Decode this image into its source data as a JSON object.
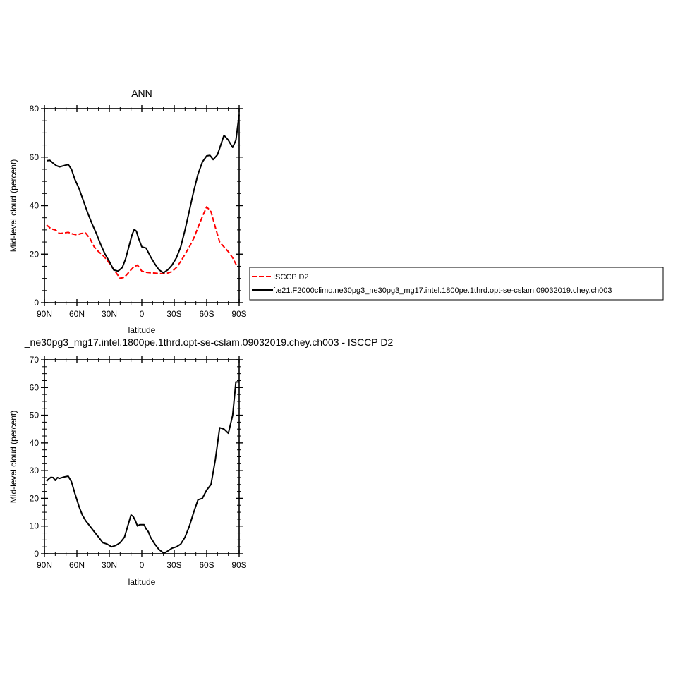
{
  "chart_data": [
    {
      "type": "line",
      "title": "ANN",
      "xlabel": "latitude",
      "ylabel": "Mid-level cloud (percent)",
      "xlim": [
        -90,
        90
      ],
      "ylim": [
        0,
        80
      ],
      "x_direction": "90N on left, 90S on right",
      "xticks": [
        {
          "value": -90,
          "label": "90N"
        },
        {
          "value": -60,
          "label": "60N"
        },
        {
          "value": -30,
          "label": "30N"
        },
        {
          "value": 0,
          "label": "0"
        },
        {
          "value": 30,
          "label": "30S"
        },
        {
          "value": 60,
          "label": "60S"
        },
        {
          "value": 90,
          "label": "90S"
        }
      ],
      "yticks": [
        0,
        20,
        40,
        60,
        80
      ],
      "legend": {
        "placement": "right, outside plot"
      },
      "series": [
        {
          "name": "ISCCP D2",
          "color": "#ff0000",
          "style": "dashed",
          "x": [
            -88,
            -84,
            -80,
            -76,
            -72,
            -68,
            -64,
            -60,
            -56,
            -52,
            -48,
            -44,
            -40,
            -36,
            -32,
            -28,
            -24,
            -20,
            -16,
            -12,
            -8,
            -4,
            0,
            4,
            8,
            12,
            16,
            20,
            24,
            28,
            32,
            36,
            40,
            44,
            48,
            52,
            56,
            60,
            64,
            68,
            72,
            76,
            80,
            84,
            88
          ],
          "values": [
            32,
            30.5,
            30,
            28.5,
            28.7,
            29,
            28.3,
            28,
            28.5,
            28.7,
            26.5,
            23,
            21,
            19.5,
            17.5,
            15,
            12.5,
            10,
            10.5,
            12.5,
            14.5,
            15.5,
            13,
            12.5,
            12.3,
            12.2,
            12,
            12,
            12.2,
            12.8,
            14.5,
            17,
            20,
            23,
            26.5,
            31,
            35.5,
            39.5,
            37.5,
            31,
            25,
            23,
            21,
            18.5,
            15
          ]
        },
        {
          "name": "f.e21.F2000climo.ne30pg3_ne30pg3_mg17.intel.1800pe.1thrd.opt-se-cslam.09032019.chey.ch003",
          "color": "#000000",
          "style": "solid",
          "x": [
            -88,
            -85,
            -82,
            -79,
            -76,
            -72,
            -68,
            -65,
            -62,
            -58,
            -54,
            -50,
            -46,
            -42,
            -38,
            -34,
            -30,
            -26,
            -22,
            -18,
            -15,
            -12,
            -9,
            -7,
            -5,
            -3,
            0,
            4,
            8,
            12,
            16,
            20,
            24,
            28,
            32,
            36,
            40,
            44,
            48,
            52,
            56,
            60,
            63,
            66,
            70,
            73,
            76,
            80,
            84,
            87,
            90
          ],
          "values": [
            58.5,
            58.7,
            57.5,
            56.5,
            56,
            56.5,
            57,
            55,
            51,
            47,
            42,
            37,
            32.5,
            28.5,
            24,
            20,
            17,
            13.5,
            13,
            14.5,
            18,
            23,
            28,
            30.2,
            29.5,
            26.5,
            23,
            22.5,
            19,
            16,
            13.5,
            12.3,
            13.5,
            15.5,
            18.5,
            23,
            30,
            38,
            46,
            53,
            58,
            60.5,
            60.7,
            59,
            61,
            65,
            69,
            67,
            64,
            67,
            77.5
          ]
        }
      ]
    },
    {
      "type": "line",
      "title": "_ne30pg3_mg17.intel.1800pe.1thrd.opt-se-cslam.09032019.chey.ch003 - ISCCP D2",
      "xlabel": "latitude",
      "ylabel": "Mid-level cloud (percent)",
      "xlim": [
        -90,
        90
      ],
      "ylim": [
        0,
        70
      ],
      "x_direction": "90N on left, 90S on right",
      "xticks": [
        {
          "value": -90,
          "label": "90N"
        },
        {
          "value": -60,
          "label": "60N"
        },
        {
          "value": -30,
          "label": "30N"
        },
        {
          "value": 0,
          "label": "0"
        },
        {
          "value": 30,
          "label": "30S"
        },
        {
          "value": 60,
          "label": "60S"
        },
        {
          "value": 90,
          "label": "90S"
        }
      ],
      "yticks": [
        0,
        10,
        20,
        30,
        40,
        50,
        60,
        70
      ],
      "series": [
        {
          "color": "#000000",
          "style": "solid",
          "x": [
            -88,
            -86,
            -84,
            -82,
            -80,
            -78,
            -76,
            -72,
            -68,
            -65,
            -62,
            -58,
            -55,
            -52,
            -48,
            -44,
            -40,
            -36,
            -32,
            -28,
            -24,
            -20,
            -16,
            -13,
            -10,
            -8,
            -6,
            -4,
            -2,
            0,
            2,
            4,
            6,
            8,
            12,
            16,
            20,
            22,
            24,
            28,
            32,
            36,
            40,
            44,
            48,
            52,
            56,
            58,
            60,
            64,
            68,
            72,
            76,
            80,
            84,
            87,
            90
          ],
          "values": [
            26.2,
            27,
            27.6,
            27.5,
            26.5,
            27.5,
            27.2,
            27.7,
            28,
            26,
            22,
            17,
            14,
            12,
            10,
            8,
            6,
            4,
            3.5,
            2.5,
            3,
            4,
            6,
            10,
            14,
            13.5,
            12,
            10,
            10.5,
            10.5,
            10.5,
            9,
            8,
            6,
            3.5,
            1.5,
            0.3,
            0.5,
            1,
            2,
            2.5,
            3.5,
            6,
            10,
            15,
            19.5,
            20,
            21.5,
            23,
            25,
            34,
            45.5,
            45,
            43.5,
            50,
            62,
            62
          ]
        }
      ]
    }
  ]
}
